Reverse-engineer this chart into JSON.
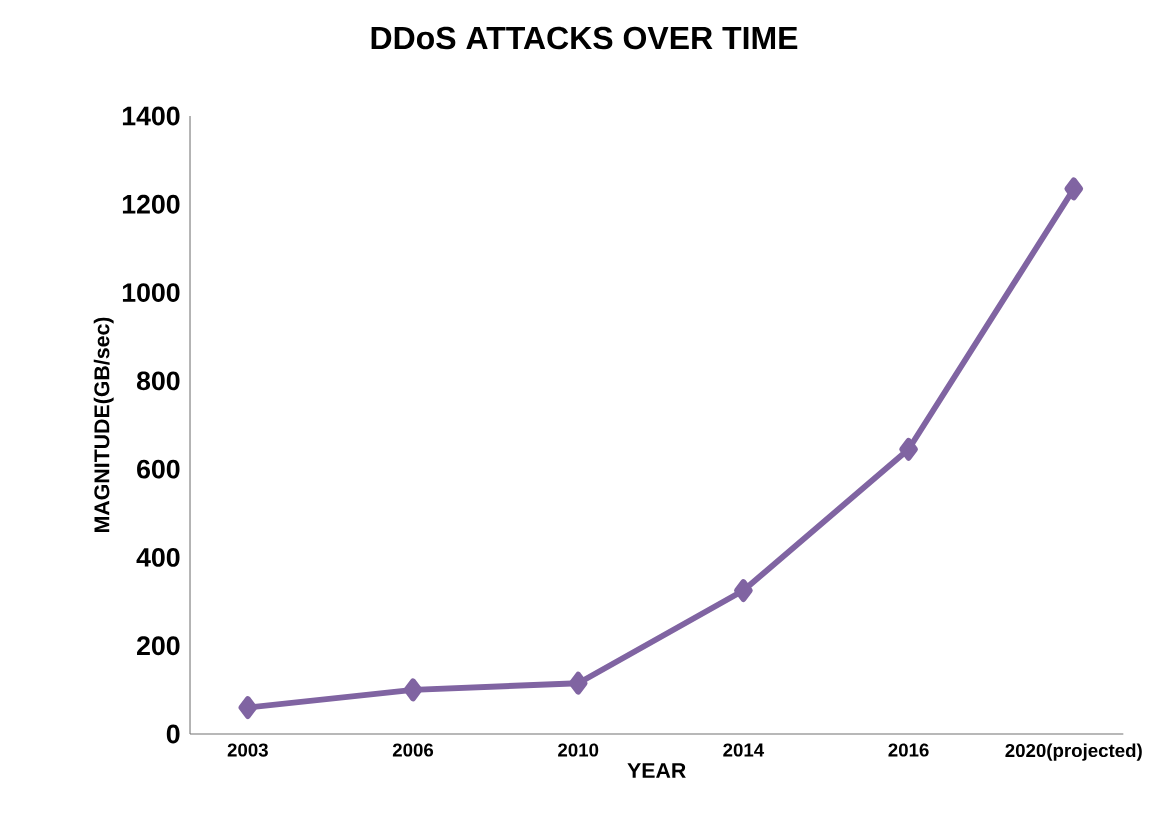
{
  "chart_data": {
    "type": "line",
    "title": "DDoS ATTACKS OVER TIME",
    "xlabel": "YEAR",
    "ylabel": "MAGNITUDE(GB/sec)",
    "categories": [
      "2003",
      "2006",
      "2010",
      "2014",
      "2016",
      "2020(projected)"
    ],
    "series": [
      {
        "color": "#8064a2",
        "values": [
          60,
          100,
          115,
          325,
          645,
          1235
        ]
      }
    ],
    "ylim": [
      0,
      1400
    ],
    "yticks": [
      0,
      200,
      400,
      600,
      800,
      1000,
      1200,
      1400
    ],
    "marker": "diamond",
    "grid": false
  }
}
